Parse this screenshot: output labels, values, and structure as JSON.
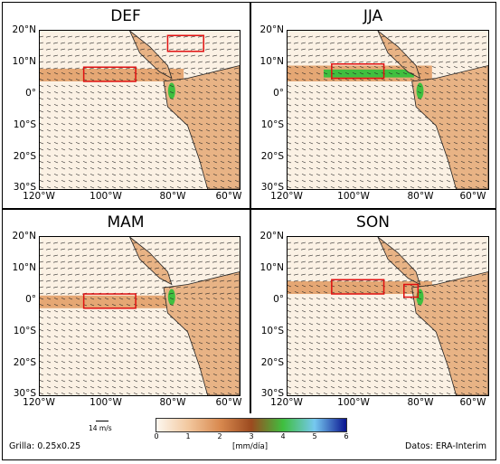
{
  "panels": [
    {
      "title": "DEF"
    },
    {
      "title": "JJA"
    },
    {
      "title": "MAM"
    },
    {
      "title": "SON"
    }
  ],
  "axes": {
    "lat_labels": [
      "20°N",
      "10°N",
      "0°",
      "10°S",
      "20°S",
      "30°S"
    ],
    "lon_labels": [
      "120°W",
      "100°W",
      "80°W",
      "60°W"
    ]
  },
  "colorbar": {
    "ticks": [
      "0",
      "1",
      "2",
      "3",
      "4",
      "5",
      "6"
    ],
    "unit": "[mm/día]",
    "colors": [
      "#fdf7ef",
      "#f2c89f",
      "#d98a50",
      "#9b4a1f",
      "#3fbf3f",
      "#76c8f0",
      "#0a1490"
    ]
  },
  "scale_arrow": {
    "label": "14 m/s"
  },
  "grid_note": "Grilla: 0.25x0.25",
  "source_note": "Datos: ERA-Interim"
}
